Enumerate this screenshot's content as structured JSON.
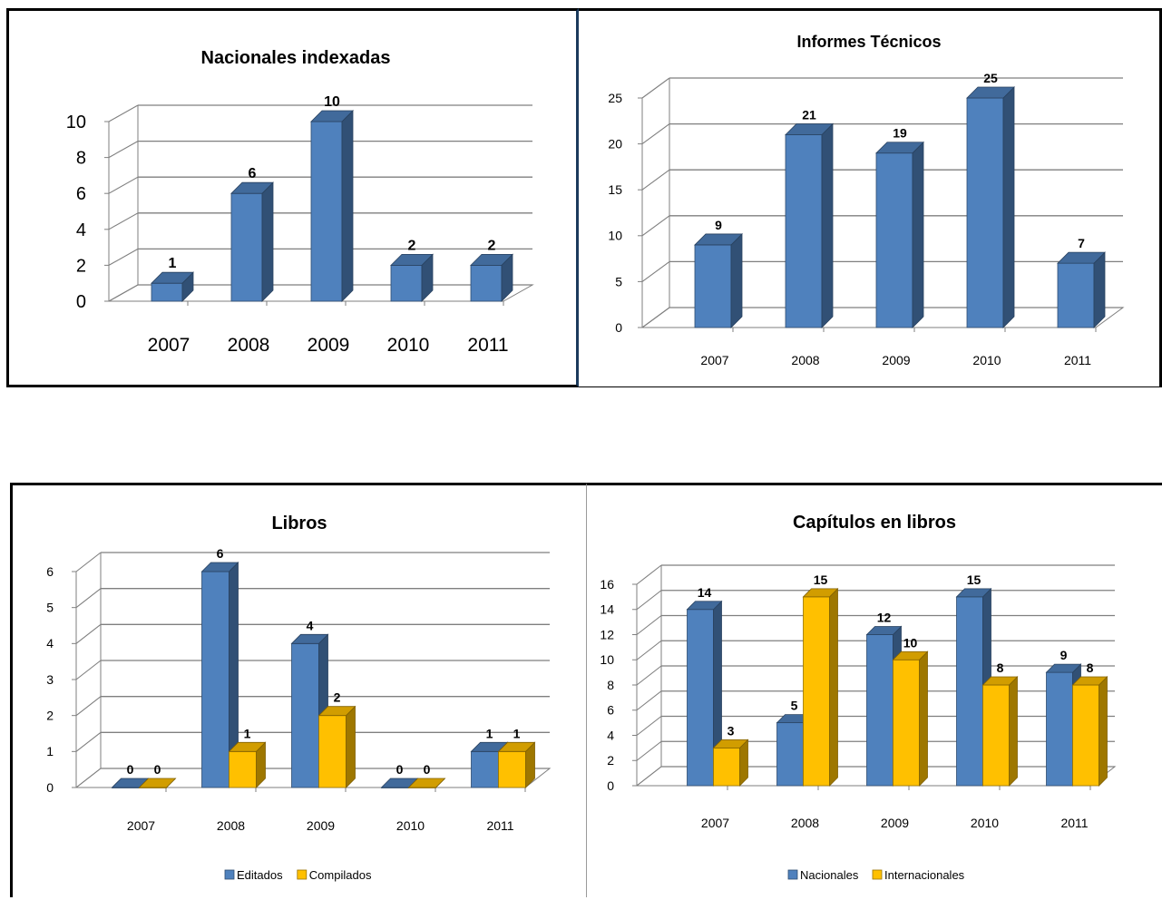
{
  "chart_data": [
    {
      "type": "bar",
      "title": "Nacionales indexadas",
      "categories": [
        "2007",
        "2008",
        "2009",
        "2010",
        "2011"
      ],
      "series": [
        {
          "values": [
            1,
            6,
            10,
            2,
            2
          ],
          "color": "#4f81bd"
        }
      ],
      "ylim": [
        0,
        10
      ],
      "yticks": [
        "0",
        "2",
        "4",
        "6",
        "8",
        "10"
      ],
      "data_labels": [
        "1",
        "6",
        "10",
        "2",
        "2"
      ],
      "grid": true,
      "style": "3d-column"
    },
    {
      "type": "bar",
      "title": "Informes Técnicos",
      "categories": [
        "2007",
        "2008",
        "2009",
        "2010",
        "2011"
      ],
      "series": [
        {
          "values": [
            9,
            21,
            19,
            25,
            7
          ],
          "color": "#4f81bd"
        }
      ],
      "ylim": [
        0,
        25
      ],
      "yticks": [
        "0",
        "5",
        "10",
        "15",
        "20",
        "25"
      ],
      "data_labels": [
        "9",
        "21",
        "19",
        "25",
        "7"
      ],
      "grid": true,
      "style": "3d-column"
    },
    {
      "type": "bar",
      "title": "Libros",
      "categories": [
        "2007",
        "2008",
        "2009",
        "2010",
        "2011"
      ],
      "series": [
        {
          "name": "Editados",
          "values": [
            0,
            6,
            4,
            0,
            1
          ],
          "color": "#4f81bd"
        },
        {
          "name": "Compilados",
          "values": [
            0,
            1,
            2,
            0,
            1
          ],
          "color": "#ffc000"
        }
      ],
      "ylim": [
        0,
        6
      ],
      "yticks": [
        "0",
        "1",
        "2",
        "3",
        "4",
        "5",
        "6"
      ],
      "legend": "bottom",
      "grid": true,
      "style": "3d-column"
    },
    {
      "type": "bar",
      "title": "Capítulos en libros",
      "categories": [
        "2007",
        "2008",
        "2009",
        "2010",
        "2011"
      ],
      "series": [
        {
          "name": "Nacionales",
          "values": [
            14,
            5,
            12,
            15,
            9
          ],
          "color": "#4f81bd"
        },
        {
          "name": "Internacionales",
          "values": [
            3,
            15,
            10,
            8,
            8
          ],
          "color": "#ffc000"
        }
      ],
      "ylim": [
        0,
        16
      ],
      "yticks": [
        "0",
        "2",
        "4",
        "6",
        "8",
        "10",
        "12",
        "14",
        "16"
      ],
      "legend": "bottom",
      "grid": true,
      "style": "3d-column"
    }
  ]
}
